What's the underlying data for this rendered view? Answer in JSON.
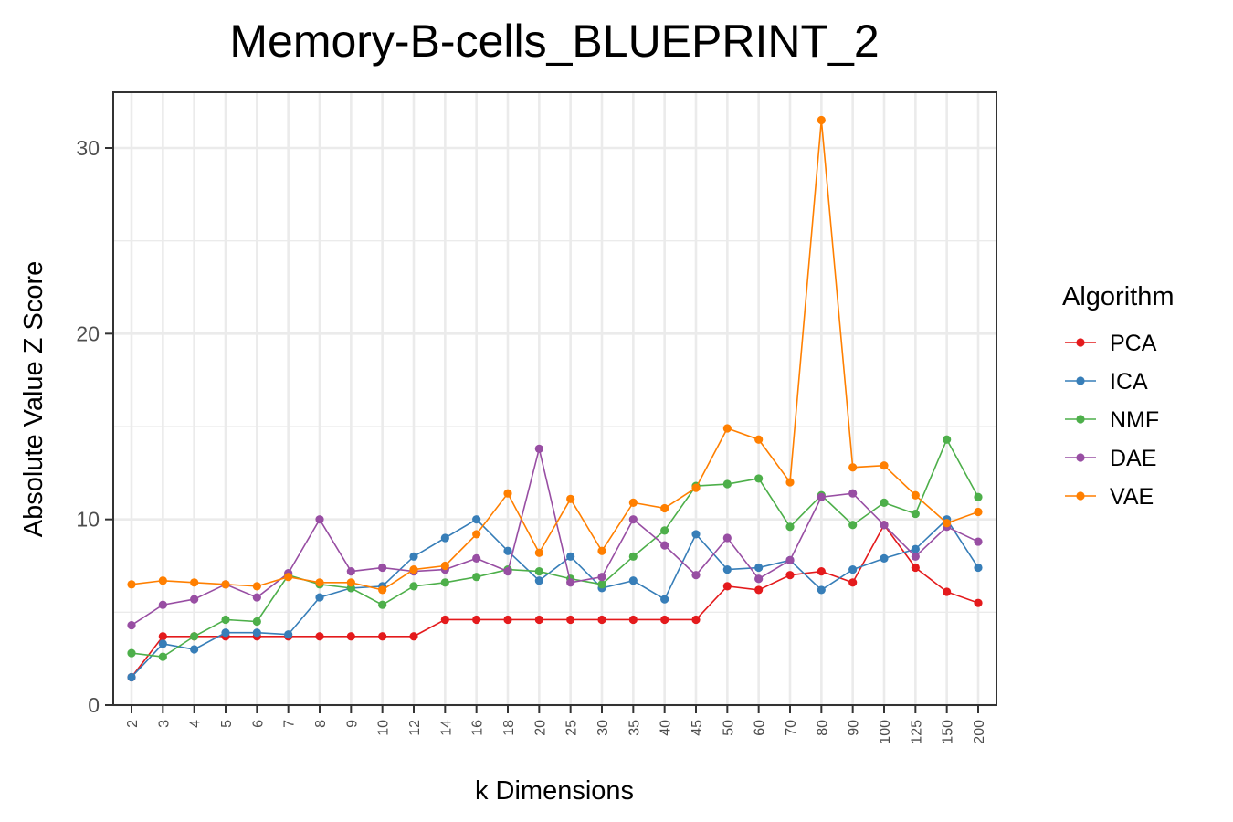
{
  "chart_data": {
    "type": "line",
    "title": "Memory-B-cells_BLUEPRINT_2",
    "xlabel": "k Dimensions",
    "ylabel": "Absolute Value Z Score",
    "legend_title": "Algorithm",
    "legend_position": "right",
    "grid": true,
    "ylim": [
      0,
      33
    ],
    "yticks": [
      "0",
      "10",
      "20",
      "30"
    ],
    "categories": [
      "2",
      "3",
      "4",
      "5",
      "6",
      "7",
      "8",
      "9",
      "10",
      "12",
      "14",
      "16",
      "18",
      "20",
      "25",
      "30",
      "35",
      "40",
      "45",
      "50",
      "60",
      "70",
      "80",
      "90",
      "100",
      "125",
      "150",
      "200"
    ],
    "series": [
      {
        "name": "PCA",
        "color": "#e41a1c",
        "values": [
          1.5,
          3.7,
          3.7,
          3.7,
          3.7,
          3.7,
          3.7,
          3.7,
          3.7,
          3.7,
          4.6,
          4.6,
          4.6,
          4.6,
          4.6,
          4.6,
          4.6,
          4.6,
          4.6,
          6.4,
          6.2,
          7.0,
          7.2,
          6.6,
          9.7,
          7.4,
          6.1,
          5.5
        ]
      },
      {
        "name": "ICA",
        "color": "#377eb8",
        "values": [
          1.5,
          3.3,
          3.0,
          3.9,
          3.9,
          3.8,
          5.8,
          6.3,
          6.4,
          8.0,
          9.0,
          10.0,
          8.3,
          6.7,
          8.0,
          6.3,
          6.7,
          5.7,
          9.2,
          7.3,
          7.4,
          7.8,
          6.2,
          7.3,
          7.9,
          8.4,
          10.0,
          7.4
        ]
      },
      {
        "name": "NMF",
        "color": "#4daf4a",
        "values": [
          2.8,
          2.6,
          3.7,
          4.6,
          4.5,
          7.0,
          6.5,
          6.3,
          5.4,
          6.4,
          6.6,
          6.9,
          7.3,
          7.2,
          6.8,
          6.5,
          8.0,
          9.4,
          11.8,
          11.9,
          12.2,
          9.6,
          11.3,
          9.7,
          10.9,
          10.3,
          14.3,
          11.2
        ]
      },
      {
        "name": "DAE",
        "color": "#984ea3",
        "values": [
          4.3,
          5.4,
          5.7,
          6.5,
          5.8,
          7.1,
          10.0,
          7.2,
          7.4,
          7.2,
          7.3,
          7.9,
          7.2,
          13.8,
          6.6,
          6.9,
          10.0,
          8.6,
          7.0,
          9.0,
          6.8,
          7.8,
          11.2,
          11.4,
          9.7,
          8.0,
          9.6,
          8.8
        ]
      },
      {
        "name": "VAE",
        "color": "#ff7f00",
        "values": [
          6.5,
          6.7,
          6.6,
          6.5,
          6.4,
          6.9,
          6.6,
          6.6,
          6.2,
          7.3,
          7.5,
          9.2,
          11.4,
          8.2,
          11.1,
          8.3,
          10.9,
          10.6,
          11.7,
          14.9,
          14.3,
          12.0,
          31.5,
          12.8,
          12.9,
          11.3,
          9.8,
          10.4
        ]
      }
    ]
  }
}
